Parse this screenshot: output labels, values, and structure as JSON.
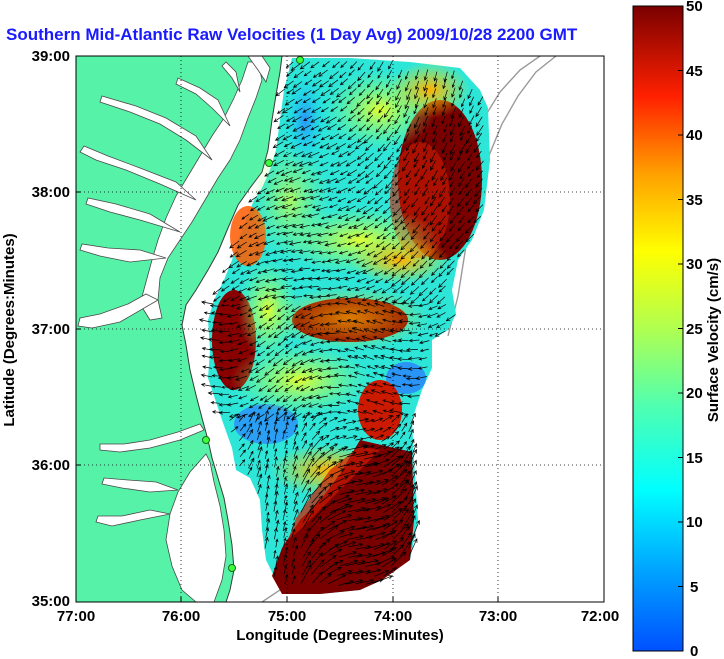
{
  "title": "Southern Mid-Atlantic Raw Velocities (1 Day Avg) 2009/10/28 2200 GMT",
  "map": {
    "xlabel": "Longitude (Degrees:Minutes)",
    "ylabel": "Latitude (Degrees:Minutes)",
    "x_ticks": [
      "77:00",
      "76:00",
      "75:00",
      "74:00",
      "73:00",
      "72:00"
    ],
    "y_ticks": [
      "39:00",
      "38:00",
      "37:00",
      "36:00",
      "35:00"
    ],
    "xlim": [
      -77,
      -72
    ],
    "ylim": [
      35,
      39
    ],
    "grid": "dotted",
    "land_color": "#55f2a8",
    "water_color": "#ffffff"
  },
  "colorbar": {
    "label": "Surface Velocity (cm/s)",
    "ticks": [
      "50",
      "45",
      "40",
      "35",
      "30",
      "25",
      "20",
      "15",
      "10",
      "5",
      "0"
    ],
    "range": [
      0,
      50
    ],
    "colormap": "jet"
  },
  "chart_data": {
    "type": "heatmap",
    "title": "Southern Mid-Atlantic Raw Velocities (1 Day Avg) 2009/10/28 2200 GMT",
    "xlabel": "Longitude (Degrees:Minutes)",
    "ylabel": "Latitude (Degrees:Minutes)",
    "xlim": [
      -77,
      -72
    ],
    "ylim": [
      35,
      39
    ],
    "clim": [
      0,
      50
    ],
    "zlabel": "Surface Velocity (cm/s)"
  }
}
